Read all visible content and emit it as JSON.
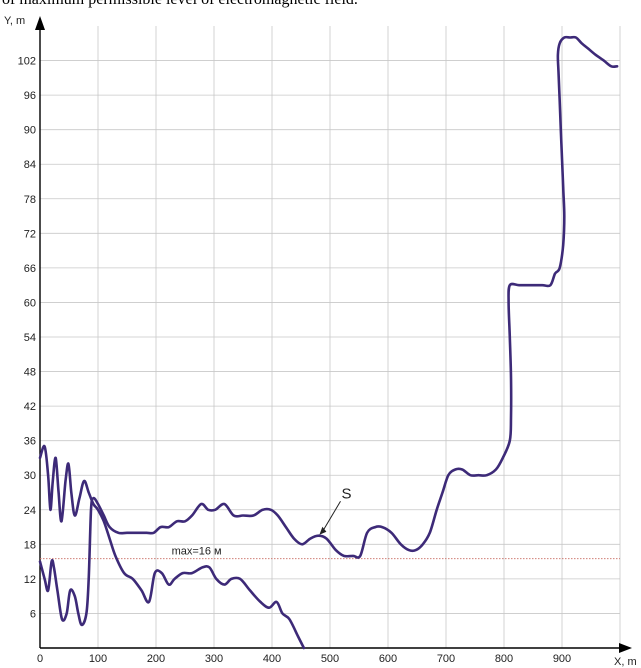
{
  "caption": "of maximum permissible level of electromagnetic field.",
  "chart_data": {
    "type": "line",
    "xlabel": "X, m",
    "ylabel": "Y, m",
    "xlim": [
      0,
      1000
    ],
    "ylim": [
      0,
      108
    ],
    "x_ticks": [
      0,
      100,
      200,
      300,
      400,
      500,
      600,
      700,
      800,
      900
    ],
    "y_ticks": [
      6,
      12,
      18,
      24,
      30,
      36,
      42,
      48,
      54,
      60,
      66,
      72,
      78,
      84,
      90,
      96,
      102
    ],
    "grid": true,
    "colors": {
      "curve": "#3d2a78",
      "threshold": "#c86a60",
      "grid": "#c8c8c8"
    },
    "threshold": {
      "y": 15.5,
      "label": "max=16 м"
    },
    "annotation": {
      "label": "S",
      "point": [
        480,
        19.5
      ],
      "text_at": [
        525,
        26
      ]
    },
    "series": [
      {
        "points": [
          [
            0,
            33
          ],
          [
            8,
            35
          ],
          [
            14,
            30
          ],
          [
            18,
            24
          ],
          [
            22,
            29
          ],
          [
            27,
            33
          ],
          [
            32,
            27
          ],
          [
            37,
            22
          ],
          [
            44,
            29
          ],
          [
            49,
            32
          ],
          [
            54,
            27
          ],
          [
            60,
            23
          ],
          [
            68,
            26
          ],
          [
            76,
            29
          ],
          [
            84,
            27
          ],
          [
            92,
            25
          ],
          [
            100,
            24
          ],
          [
            110,
            22
          ],
          [
            120,
            19
          ],
          [
            130,
            16
          ],
          [
            145,
            13
          ],
          [
            160,
            12
          ],
          [
            175,
            10
          ],
          [
            188,
            8
          ],
          [
            198,
            13
          ],
          [
            210,
            13
          ],
          [
            222,
            11
          ],
          [
            232,
            12
          ],
          [
            246,
            13
          ],
          [
            262,
            13
          ],
          [
            280,
            14
          ],
          [
            292,
            14
          ],
          [
            304,
            12
          ],
          [
            318,
            11
          ],
          [
            330,
            12
          ],
          [
            345,
            12
          ],
          [
            362,
            10
          ],
          [
            380,
            8
          ],
          [
            395,
            7
          ],
          [
            408,
            8
          ],
          [
            418,
            6
          ],
          [
            430,
            5
          ],
          [
            445,
            2
          ],
          [
            455,
            0
          ]
        ]
      },
      {
        "points": [
          [
            0,
            15
          ],
          [
            8,
            12
          ],
          [
            14,
            10
          ],
          [
            20,
            15
          ],
          [
            24,
            14
          ],
          [
            30,
            10
          ],
          [
            38,
            5
          ],
          [
            46,
            6
          ],
          [
            52,
            10
          ],
          [
            60,
            9
          ],
          [
            66,
            6
          ],
          [
            72,
            4
          ],
          [
            80,
            6
          ],
          [
            84,
            12
          ],
          [
            88,
            24
          ],
          [
            92,
            26
          ],
          [
            100,
            25
          ],
          [
            110,
            23
          ],
          [
            120,
            21
          ],
          [
            135,
            20
          ],
          [
            150,
            20
          ],
          [
            168,
            20
          ],
          [
            184,
            20
          ],
          [
            196,
            20
          ],
          [
            208,
            21
          ],
          [
            222,
            21
          ],
          [
            236,
            22
          ],
          [
            250,
            22
          ],
          [
            262,
            23
          ],
          [
            278,
            25
          ],
          [
            290,
            24
          ],
          [
            302,
            24
          ],
          [
            318,
            25
          ],
          [
            334,
            23
          ],
          [
            350,
            23
          ],
          [
            368,
            23
          ],
          [
            384,
            24
          ],
          [
            398,
            24
          ],
          [
            410,
            23
          ],
          [
            424,
            21
          ],
          [
            438,
            19
          ],
          [
            452,
            18
          ],
          [
            466,
            19
          ],
          [
            480,
            19.5
          ],
          [
            494,
            19
          ],
          [
            510,
            17
          ],
          [
            524,
            16
          ],
          [
            540,
            16
          ],
          [
            552,
            16
          ],
          [
            564,
            20
          ],
          [
            578,
            21
          ],
          [
            590,
            21
          ],
          [
            606,
            20
          ],
          [
            622,
            18
          ],
          [
            636,
            17
          ],
          [
            648,
            17
          ],
          [
            660,
            18
          ],
          [
            672,
            20
          ],
          [
            684,
            24
          ],
          [
            694,
            27
          ],
          [
            704,
            30
          ],
          [
            716,
            31
          ],
          [
            728,
            31
          ],
          [
            742,
            30
          ],
          [
            756,
            30
          ],
          [
            770,
            30
          ],
          [
            786,
            31
          ],
          [
            798,
            33
          ],
          [
            810,
            36
          ],
          [
            812,
            40
          ],
          [
            812,
            47
          ],
          [
            810,
            54
          ],
          [
            808,
            60
          ],
          [
            810,
            63
          ],
          [
            826,
            63
          ],
          [
            846,
            63
          ],
          [
            866,
            63
          ],
          [
            880,
            63
          ],
          [
            888,
            65
          ],
          [
            896,
            66
          ],
          [
            902,
            70
          ],
          [
            904,
            75
          ],
          [
            902,
            80
          ],
          [
            900,
            85
          ],
          [
            898,
            90
          ],
          [
            896,
            95
          ],
          [
            894,
            100
          ],
          [
            893,
            103
          ],
          [
            896,
            105
          ],
          [
            904,
            106
          ],
          [
            914,
            106
          ],
          [
            924,
            106
          ],
          [
            934,
            105
          ],
          [
            946,
            104
          ],
          [
            958,
            103
          ],
          [
            972,
            102
          ],
          [
            985,
            101
          ],
          [
            995,
            101
          ]
        ]
      }
    ]
  }
}
